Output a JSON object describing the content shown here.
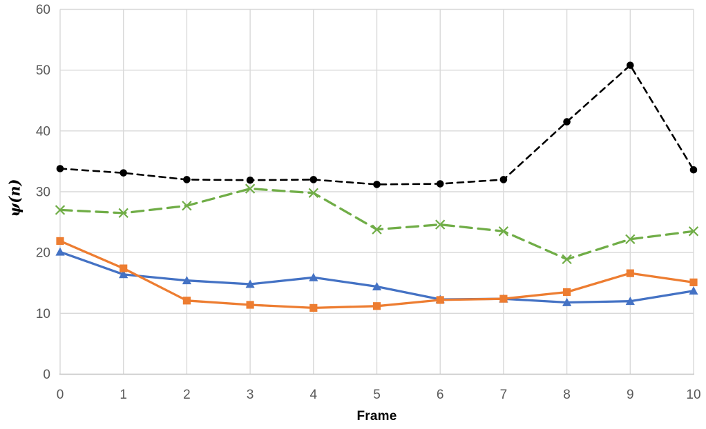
{
  "chart_data": {
    "type": "line",
    "title": "",
    "xlabel": "Frame",
    "ylabel": "ψ(n)",
    "xlim": [
      0,
      10
    ],
    "ylim": [
      0,
      60
    ],
    "x_ticks": [
      0,
      1,
      2,
      3,
      4,
      5,
      6,
      7,
      8,
      9,
      10
    ],
    "y_ticks": [
      0,
      10,
      20,
      30,
      40,
      50,
      60
    ],
    "grid": true,
    "legend": false,
    "x": [
      0,
      1,
      2,
      3,
      4,
      5,
      6,
      7,
      8,
      9,
      10
    ],
    "series": [
      {
        "name": "blue-solid-triangle",
        "color": "#4472C4",
        "line_style": "solid",
        "marker": "triangle",
        "values": [
          20.1,
          16.4,
          15.4,
          14.8,
          15.9,
          14.4,
          12.3,
          12.4,
          11.8,
          12.0,
          13.7
        ]
      },
      {
        "name": "orange-solid-square",
        "color": "#ED7D31",
        "line_style": "solid",
        "marker": "square",
        "values": [
          21.9,
          17.4,
          12.1,
          11.4,
          10.9,
          11.2,
          12.2,
          12.4,
          13.5,
          16.6,
          15.1
        ]
      },
      {
        "name": "green-dashed-x",
        "color": "#70AD47",
        "line_style": "long-dash",
        "marker": "x",
        "values": [
          27.0,
          26.5,
          27.7,
          30.5,
          29.8,
          23.8,
          24.6,
          23.5,
          18.9,
          22.2,
          23.5
        ]
      },
      {
        "name": "black-dashed-circle",
        "color": "#000000",
        "line_style": "dash",
        "marker": "circle",
        "values": [
          33.8,
          33.1,
          32.0,
          31.9,
          32.0,
          31.2,
          31.3,
          32.0,
          41.5,
          50.8,
          33.6
        ]
      }
    ],
    "colors": {
      "gridline": "#D9D9D9",
      "axis_line": "#BFBFBF",
      "tick_label": "#595959",
      "axis_title": "#000000",
      "background": "#FFFFFF"
    }
  }
}
